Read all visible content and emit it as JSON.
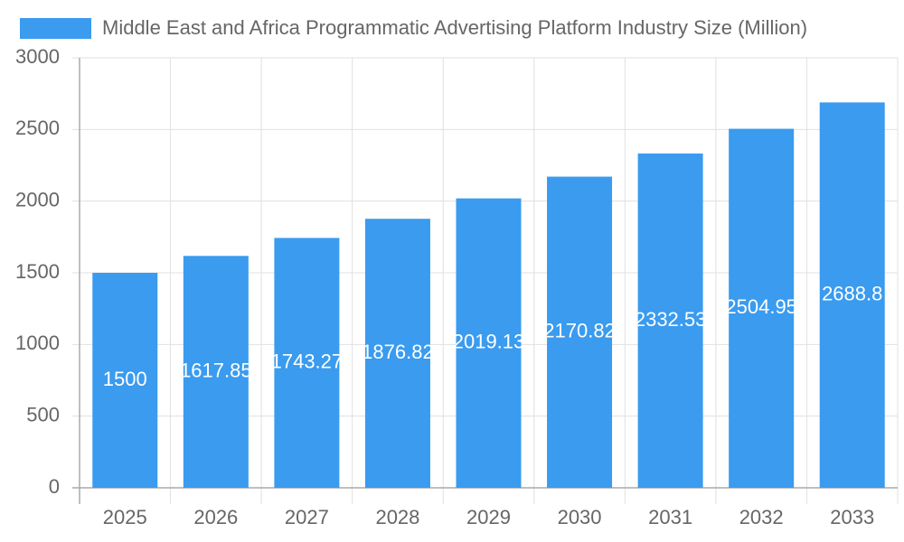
{
  "chart_data": {
    "type": "bar",
    "series": [
      {
        "name": "Middle East and Africa Programmatic Advertising Platform Industry Size (Million)",
        "color": "#3a9bef",
        "values": [
          1500,
          1617.85,
          1743.27,
          1876.82,
          2019.13,
          2170.82,
          2332.53,
          2504.95,
          2688.8
        ]
      }
    ],
    "categories": [
      "2025",
      "2026",
      "2027",
      "2028",
      "2029",
      "2030",
      "2031",
      "2032",
      "2033"
    ],
    "ylim": [
      0,
      3000
    ],
    "yticks": [
      0,
      500,
      1000,
      1500,
      2000,
      2500,
      3000
    ],
    "grid": true,
    "legend": "top"
  }
}
